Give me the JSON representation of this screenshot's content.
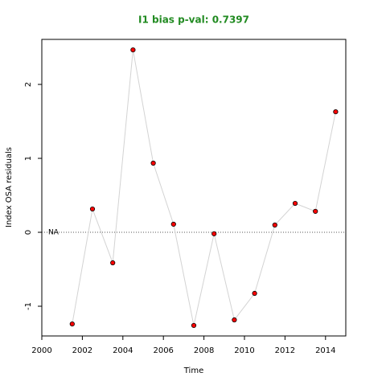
{
  "chart_data": {
    "type": "line",
    "title": "I1 bias p-val: 0.7397",
    "title_color": "#228b22",
    "x_label": "Time",
    "y_label": "Index OSA residuals",
    "x": [
      2001.5,
      2002.5,
      2003.5,
      2004.5,
      2005.5,
      2006.5,
      2007.5,
      2008.5,
      2009.5,
      2010.5,
      2011.5,
      2012.5,
      2013.5,
      2014.5
    ],
    "series": [
      {
        "color": "#ff0000",
        "line_color": "#d3d3d3",
        "values": [
          -1.24,
          0.315,
          -0.413,
          2.467,
          0.935,
          0.109,
          -1.26,
          -0.02,
          -1.185,
          -0.826,
          0.098,
          0.391,
          0.283,
          1.63
        ]
      }
    ],
    "xlim": [
      2000,
      2015
    ],
    "xticks": [
      2000,
      2002,
      2004,
      2006,
      2008,
      2010,
      2012,
      2014
    ],
    "ylim": [
      -1.402,
      2.609
    ],
    "yticks": [
      -1,
      0,
      1,
      2
    ],
    "hline": 0,
    "hline_label": "NA"
  }
}
